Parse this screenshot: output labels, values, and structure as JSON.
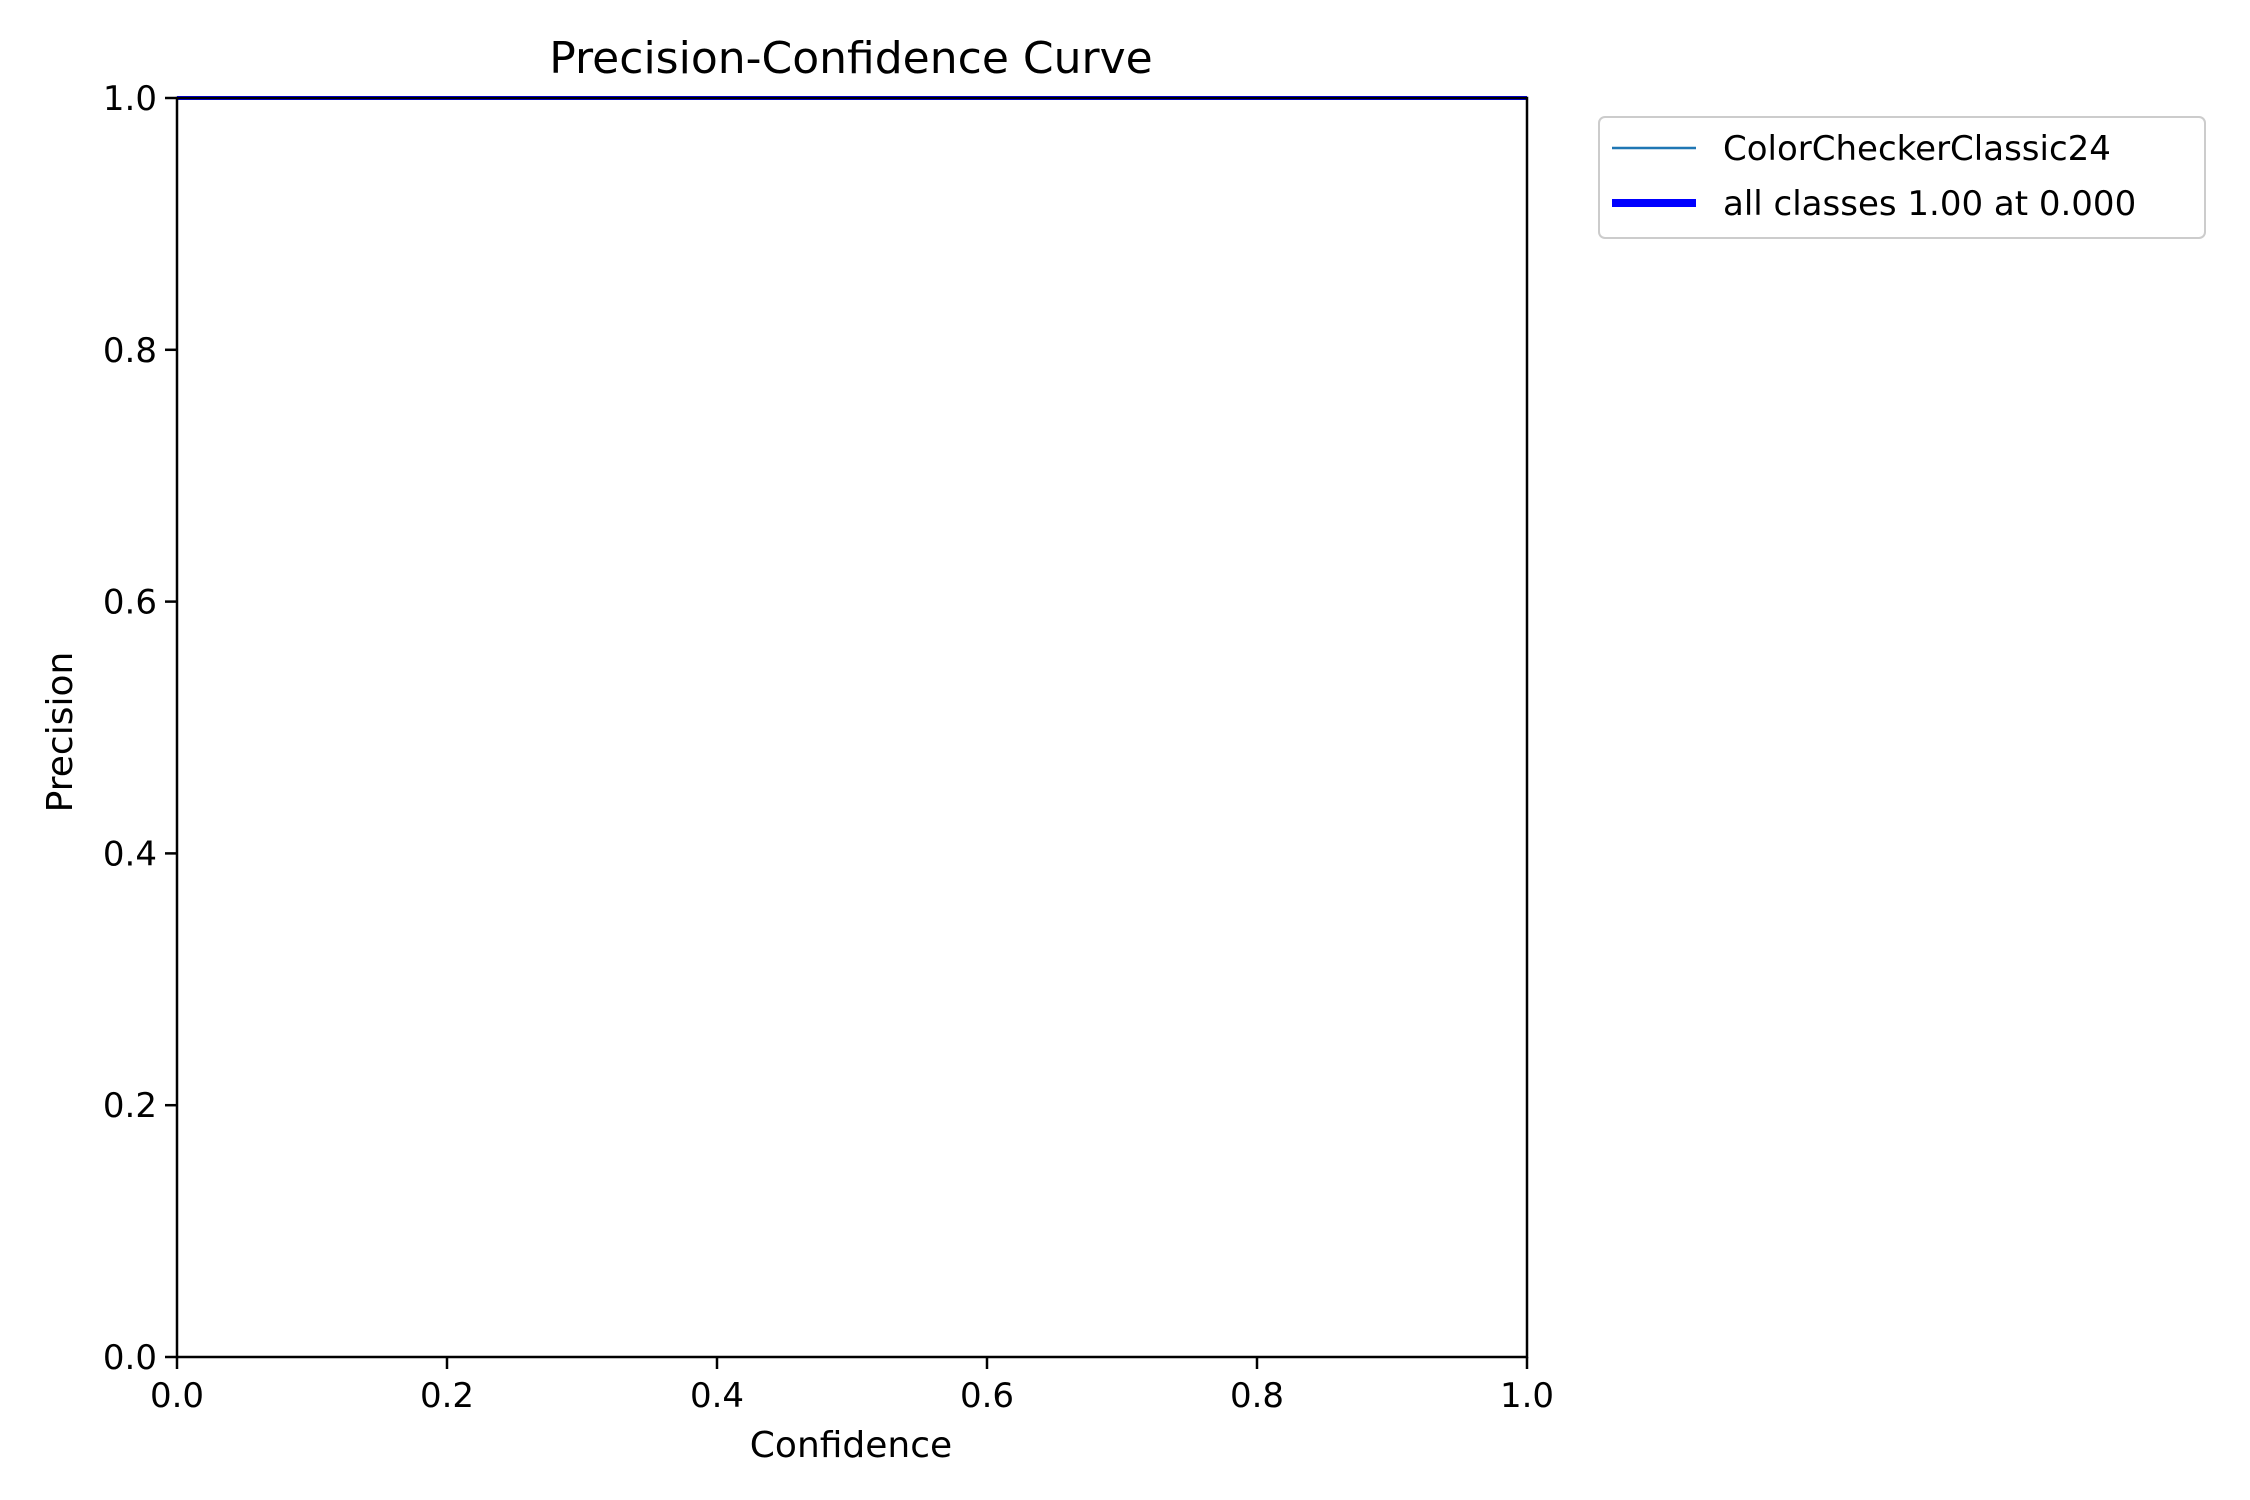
{
  "chart_data": {
    "type": "line",
    "title": "Precision-Confidence Curve",
    "xlabel": "Confidence",
    "ylabel": "Precision",
    "xlim": [
      0,
      1
    ],
    "ylim": [
      0,
      1
    ],
    "x_ticks": [
      "0.0",
      "0.2",
      "0.4",
      "0.6",
      "0.8",
      "1.0"
    ],
    "y_ticks": [
      "0.0",
      "0.2",
      "0.4",
      "0.6",
      "0.8",
      "1.0"
    ],
    "grid": false,
    "legend_position": "outside top-right",
    "series": [
      {
        "name": "ColorCheckerClassic24",
        "color": "#1f77b4",
        "style": "thin",
        "x": [
          0,
          1
        ],
        "y": [
          1,
          1
        ]
      },
      {
        "name": "all classes 1.00 at 0.000",
        "color": "#0000ff",
        "style": "thick",
        "x": [
          0,
          1
        ],
        "y": [
          1,
          1
        ]
      }
    ]
  }
}
